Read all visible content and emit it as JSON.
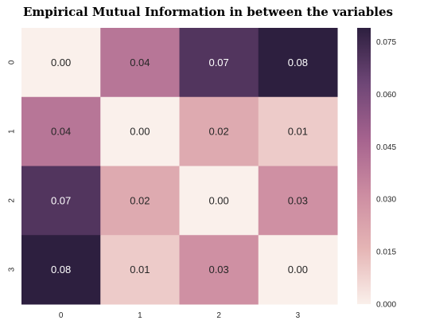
{
  "chart_data": {
    "type": "heatmap",
    "title": "Empirical Mutual Information in between the variables",
    "x_categories": [
      "0",
      "1",
      "2",
      "3"
    ],
    "y_categories": [
      "0",
      "1",
      "2",
      "3"
    ],
    "values": [
      [
        0.0,
        0.04,
        0.07,
        0.08
      ],
      [
        0.04,
        0.0,
        0.02,
        0.01
      ],
      [
        0.07,
        0.02,
        0.0,
        0.03
      ],
      [
        0.08,
        0.01,
        0.03,
        0.0
      ]
    ],
    "cell_labels": [
      [
        "0.00",
        "0.04",
        "0.07",
        "0.08"
      ],
      [
        "0.04",
        "0.00",
        "0.02",
        "0.01"
      ],
      [
        "0.07",
        "0.02",
        "0.00",
        "0.03"
      ],
      [
        "0.08",
        "0.01",
        "0.03",
        "0.00"
      ]
    ],
    "colorbar": {
      "range": [
        0.0,
        0.079
      ],
      "ticks": [
        0.0,
        0.015,
        0.03,
        0.045,
        0.06,
        0.075
      ],
      "tick_labels": [
        "0.000",
        "0.015",
        "0.030",
        "0.045",
        "0.060",
        "0.075"
      ],
      "placement": "right"
    },
    "colormap": [
      "#faf0eb",
      "#e5b5b5",
      "#cc8ca1",
      "#a5628e",
      "#6e4676",
      "#2d1f3f"
    ],
    "grid": false,
    "legend": "none"
  }
}
